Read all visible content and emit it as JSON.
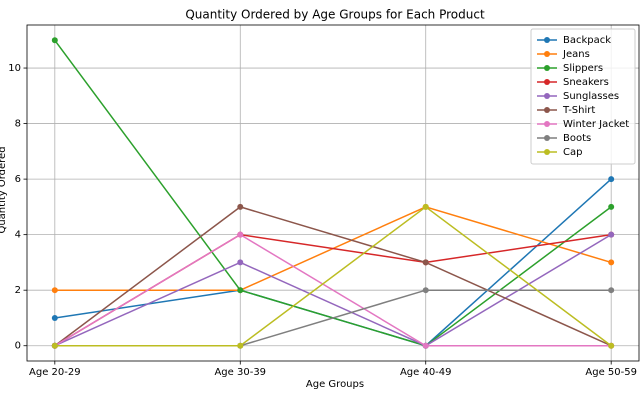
{
  "chart_data": {
    "type": "line",
    "title": "Quantity Ordered by Age Groups for Each Product",
    "xlabel": "Age Groups",
    "ylabel": "Quantity Ordered",
    "categories": [
      "Age 20-29",
      "Age 30-39",
      "Age 40-49",
      "Age 50-59"
    ],
    "series": [
      {
        "name": "Backpack",
        "color": "#1f77b4",
        "values": [
          1,
          2,
          0,
          6
        ]
      },
      {
        "name": "Jeans",
        "color": "#ff7f0e",
        "values": [
          2,
          2,
          5,
          3
        ]
      },
      {
        "name": "Slippers",
        "color": "#2ca02c",
        "values": [
          11,
          2,
          0,
          5
        ]
      },
      {
        "name": "Sneakers",
        "color": "#d62728",
        "values": [
          0,
          4,
          3,
          4
        ]
      },
      {
        "name": "Sunglasses",
        "color": "#9467bd",
        "values": [
          0,
          3,
          0,
          4
        ]
      },
      {
        "name": "T-Shirt",
        "color": "#8c564b",
        "values": [
          0,
          5,
          3,
          0
        ]
      },
      {
        "name": "Winter Jacket",
        "color": "#e377c2",
        "values": [
          0,
          4,
          0,
          0
        ]
      },
      {
        "name": "Boots",
        "color": "#7f7f7f",
        "values": [
          0,
          0,
          2,
          2
        ]
      },
      {
        "name": "Cap",
        "color": "#bcbd22",
        "values": [
          0,
          0,
          5,
          0
        ]
      }
    ],
    "ylim": [
      -0.55,
      11.55
    ],
    "yticks": [
      0,
      2,
      4,
      6,
      8,
      10
    ],
    "grid": true,
    "legend": "upper right"
  }
}
